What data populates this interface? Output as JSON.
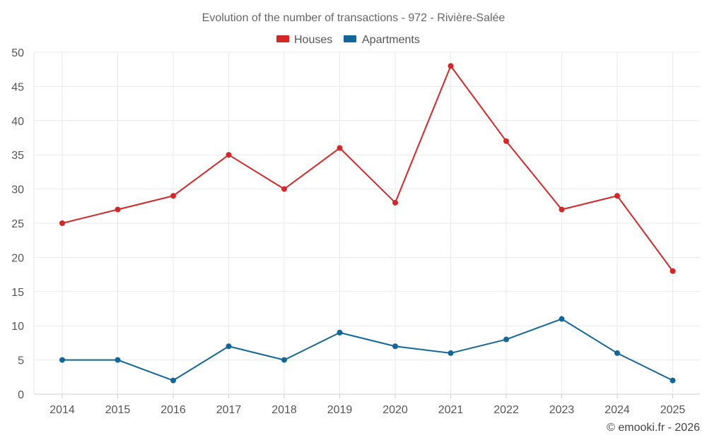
{
  "chart_data": {
    "type": "line",
    "title": "Evolution of the number of transactions - 972 - Rivière-Salée",
    "categories": [
      "2014",
      "2015",
      "2016",
      "2017",
      "2018",
      "2019",
      "2020",
      "2021",
      "2022",
      "2023",
      "2024",
      "2025"
    ],
    "ylim": [
      0,
      50
    ],
    "yticks": [
      0,
      5,
      10,
      15,
      20,
      25,
      30,
      35,
      40,
      45,
      50
    ],
    "xlabel": "",
    "ylabel": "",
    "grid": true,
    "legend_position": "top-center",
    "series": [
      {
        "name": "Houses",
        "color": "#d62728",
        "values": [
          25,
          27,
          29,
          35,
          30,
          36,
          28,
          48,
          37,
          27,
          29,
          18
        ]
      },
      {
        "name": "Apartments",
        "color": "#11679b",
        "values": [
          5,
          5,
          2,
          7,
          5,
          9,
          7,
          6,
          8,
          11,
          6,
          2
        ]
      }
    ]
  },
  "credit": "© emooki.fr - 2026"
}
